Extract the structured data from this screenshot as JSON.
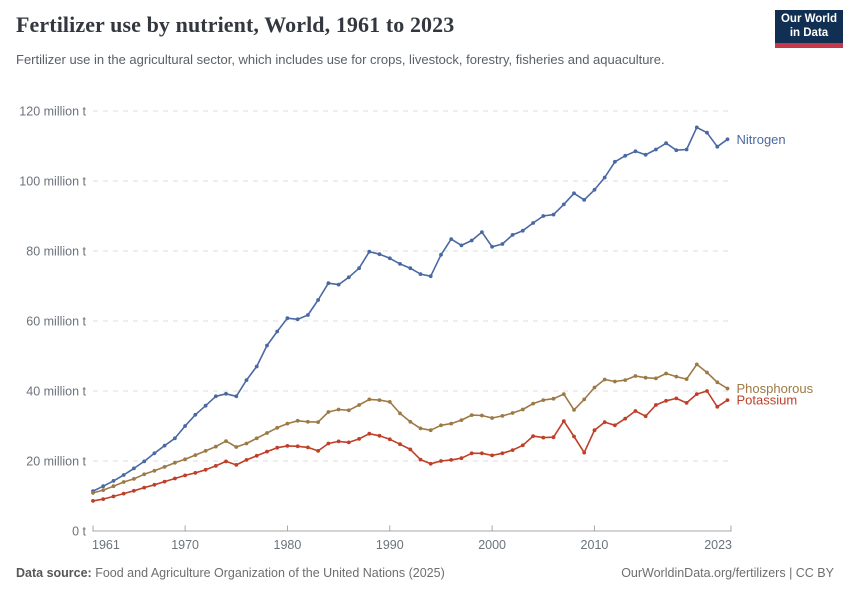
{
  "header": {
    "title": "Fertilizer use by nutrient, World, 1961 to 2023",
    "subtitle": "Fertilizer use in the agricultural sector, which includes use for crops, livestock, forestry, fisheries and aquaculture.",
    "logo": {
      "line1": "Our World",
      "line2": "in Data"
    }
  },
  "footer": {
    "source_label": "Data source:",
    "source_text": "Food and Agriculture Organization of the United Nations (2025)",
    "credit": "OurWorldinData.org/fertilizers | CC BY"
  },
  "chart_data": {
    "type": "line",
    "title": "Fertilizer use by nutrient, World, 1961 to 2023",
    "unit": "million tonnes",
    "xlim": [
      1961,
      2023
    ],
    "ylim": [
      0,
      120
    ],
    "grid": "horizontal-dashed",
    "legend_position": "end-of-line-labels",
    "x": [
      1961,
      1962,
      1963,
      1964,
      1965,
      1966,
      1967,
      1968,
      1969,
      1970,
      1971,
      1972,
      1973,
      1974,
      1975,
      1976,
      1977,
      1978,
      1979,
      1980,
      1981,
      1982,
      1983,
      1984,
      1985,
      1986,
      1987,
      1988,
      1989,
      1990,
      1991,
      1992,
      1993,
      1994,
      1995,
      1996,
      1997,
      1998,
      1999,
      2000,
      2001,
      2002,
      2003,
      2004,
      2005,
      2006,
      2007,
      2008,
      2009,
      2010,
      2011,
      2012,
      2013,
      2014,
      2015,
      2016,
      2017,
      2018,
      2019,
      2020,
      2021,
      2022,
      2023
    ],
    "series": [
      {
        "name": "Nitrogen",
        "color": "#4a69a3",
        "values": [
          11.4,
          12.8,
          14.3,
          16,
          17.9,
          19.9,
          22.2,
          24.4,
          26.5,
          30,
          33.2,
          35.8,
          38.5,
          39.2,
          38.5,
          43.1,
          47,
          53,
          57,
          60.8,
          60.5,
          61.7,
          66,
          70.8,
          70.4,
          72.5,
          75.1,
          79.8,
          79.1,
          77.9,
          76.3,
          75.1,
          73.4,
          72.8,
          78.9,
          83.4,
          81.6,
          83,
          85.4,
          81.2,
          82,
          84.6,
          85.8,
          88,
          90,
          90.4,
          93.3,
          96.5,
          94.6,
          97.5,
          101,
          105.5,
          107.2,
          108.5,
          107.5,
          109,
          110.8,
          108.8,
          109,
          115.3,
          113.8,
          109.8,
          111.9
        ]
      },
      {
        "name": "Phosphorous",
        "color": "#9d7a45",
        "values": [
          10.9,
          11.7,
          12.8,
          14,
          14.9,
          16.2,
          17.2,
          18.3,
          19.5,
          20.5,
          21.7,
          22.9,
          24.1,
          25.7,
          24,
          25,
          26.5,
          28,
          29.5,
          30.7,
          31.5,
          31.2,
          31.1,
          34,
          34.7,
          34.5,
          36,
          37.6,
          37.4,
          36.9,
          33.6,
          31.2,
          29.3,
          28.8,
          30.2,
          30.7,
          31.7,
          33.1,
          33,
          32.3,
          32.9,
          33.7,
          34.7,
          36.4,
          37.4,
          37.8,
          39.1,
          34.6,
          37.6,
          41,
          43.3,
          42.7,
          43.1,
          44.3,
          43.8,
          43.6,
          45,
          44.1,
          43.4,
          47.6,
          45.3,
          42.5,
          40.7
        ]
      },
      {
        "name": "Potassium",
        "color": "#bf3f28",
        "values": [
          8.6,
          9.1,
          9.9,
          10.7,
          11.5,
          12.4,
          13.2,
          14.1,
          15,
          15.9,
          16.6,
          17.5,
          18.6,
          19.9,
          18.9,
          20.3,
          21.5,
          22.7,
          23.8,
          24.3,
          24.2,
          23.9,
          22.9,
          25,
          25.6,
          25.3,
          26.3,
          27.8,
          27.2,
          26.2,
          24.8,
          23.3,
          20.4,
          19.2,
          20,
          20.3,
          20.8,
          22.2,
          22.2,
          21.6,
          22.2,
          23.1,
          24.5,
          27.1,
          26.7,
          26.8,
          31.4,
          27,
          22.4,
          28.8,
          31.1,
          30.2,
          32.1,
          34.3,
          32.8,
          36,
          37.2,
          37.9,
          36.6,
          39.1,
          40,
          35.5,
          37.4
        ]
      }
    ],
    "xticks": [
      1961,
      1970,
      1980,
      1990,
      2000,
      2010,
      2023
    ],
    "xtick_labels": [
      "1961",
      "1970",
      "1980",
      "1990",
      "2000",
      "2010",
      "2023"
    ],
    "yticks": [
      0,
      20,
      40,
      60,
      80,
      100,
      120
    ],
    "y_tick_labels": [
      "0 t",
      "20 million t",
      "40 million t",
      "60 million t",
      "80 million t",
      "100 million t",
      "120 million t"
    ]
  }
}
